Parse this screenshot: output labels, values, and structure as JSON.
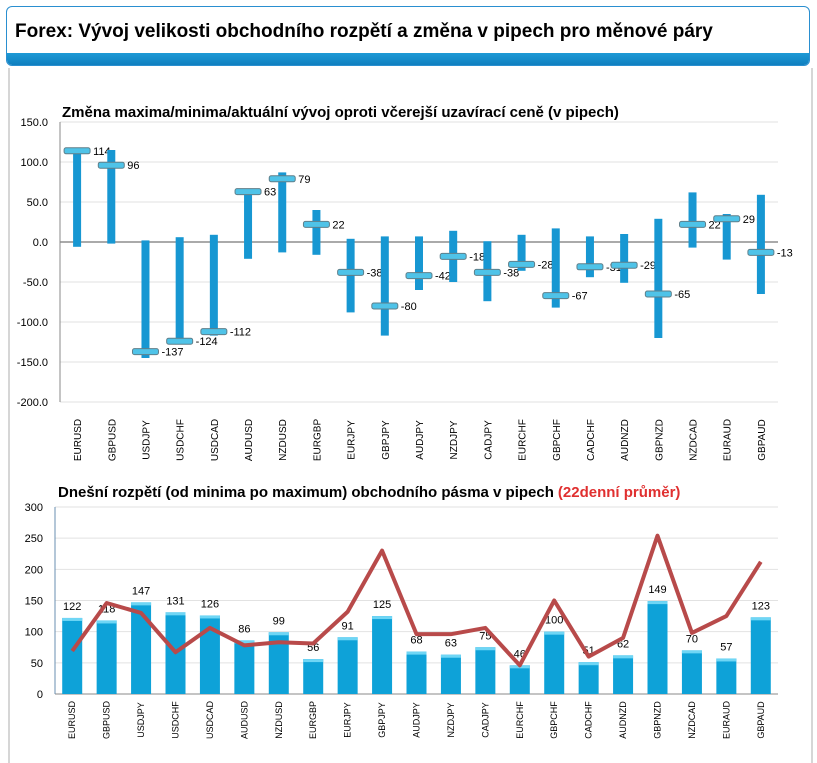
{
  "header": {
    "title": "Forex: Vývoj velikosti obchodního rozpětí a změna v pipech pro měnové páry"
  },
  "chart_data": [
    {
      "type": "range-bar",
      "title": "Změna maxima/minima/aktuální vývoj oproti včerejší uzavírací ceně (v pipech)",
      "ylim": [
        -200,
        150
      ],
      "yticks": [
        "150.0",
        "100.0",
        "50.0",
        "0.0",
        "-50.0",
        "-100.0",
        "-150.0",
        "-200.0"
      ],
      "ytick_values": [
        150,
        100,
        50,
        0,
        -50,
        -100,
        -150,
        -200
      ],
      "grid": true,
      "categories": [
        "EURUSD",
        "GBPUSD",
        "USDJPY",
        "USDCHF",
        "USDCAD",
        "AUDUSD",
        "NZDUSD",
        "EURGBP",
        "EURJPY",
        "GBPJPY",
        "AUDJPY",
        "NZDJPY",
        "CADJPY",
        "EURCHF",
        "GBPCHF",
        "CADCHF",
        "AUDNZD",
        "GBPNZD",
        "NZDCAD",
        "EURAUD",
        "GBPAUD"
      ],
      "high": [
        114,
        115,
        2,
        6,
        9,
        64,
        87,
        40,
        4,
        7,
        7,
        14,
        1,
        9,
        17,
        7,
        10,
        29,
        62,
        35,
        59
      ],
      "low": [
        -6,
        -2,
        -145,
        -128,
        -117,
        -21,
        -13,
        -16,
        -88,
        -117,
        -60,
        -50,
        -74,
        -36,
        -82,
        -44,
        -51,
        -120,
        -7,
        -22,
        -65
      ],
      "current": [
        114,
        96,
        -137,
        -124,
        -112,
        63,
        79,
        22,
        -38,
        -80,
        -42,
        -18,
        -38,
        -28,
        -67,
        -31,
        -29,
        -65,
        22,
        29,
        -13
      ],
      "colors": {
        "bar": "#1797d2",
        "marker": "#4fc3e8"
      }
    },
    {
      "type": "bar+line",
      "title": "Dnešní rozpětí (od minima po maximum) obchodního pásma v pipech",
      "title_highlight": "(22denní průměr)",
      "ylim": [
        0,
        300
      ],
      "yticks": [
        "300",
        "250",
        "200",
        "150",
        "100",
        "50",
        "0"
      ],
      "ytick_values": [
        300,
        250,
        200,
        150,
        100,
        50,
        0
      ],
      "grid": true,
      "categories": [
        "EURUSD",
        "GBPUSD",
        "USDJPY",
        "USDCHF",
        "USDCAD",
        "AUDUSD",
        "NZDUSD",
        "EURGBP",
        "EURJPY",
        "GBPJPY",
        "AUDJPY",
        "NZDJPY",
        "CADJPY",
        "EURCHF",
        "GBPCHF",
        "CADCHF",
        "AUDNZD",
        "GBPNZD",
        "NZDCAD",
        "EURAUD",
        "GBPAUD"
      ],
      "bars": [
        122,
        118,
        147,
        131,
        126,
        86,
        99,
        56,
        91,
        125,
        68,
        63,
        75,
        46,
        100,
        51,
        62,
        149,
        70,
        57,
        123
      ],
      "line": [
        69,
        146,
        130,
        67,
        106,
        78,
        83,
        81,
        132,
        230,
        96,
        96,
        106,
        46,
        150,
        60,
        90,
        254,
        98,
        125,
        212
      ],
      "colors": {
        "bar": "#0ea2d8",
        "line": "#b84a4a",
        "highlight": "#e03030"
      }
    }
  ]
}
